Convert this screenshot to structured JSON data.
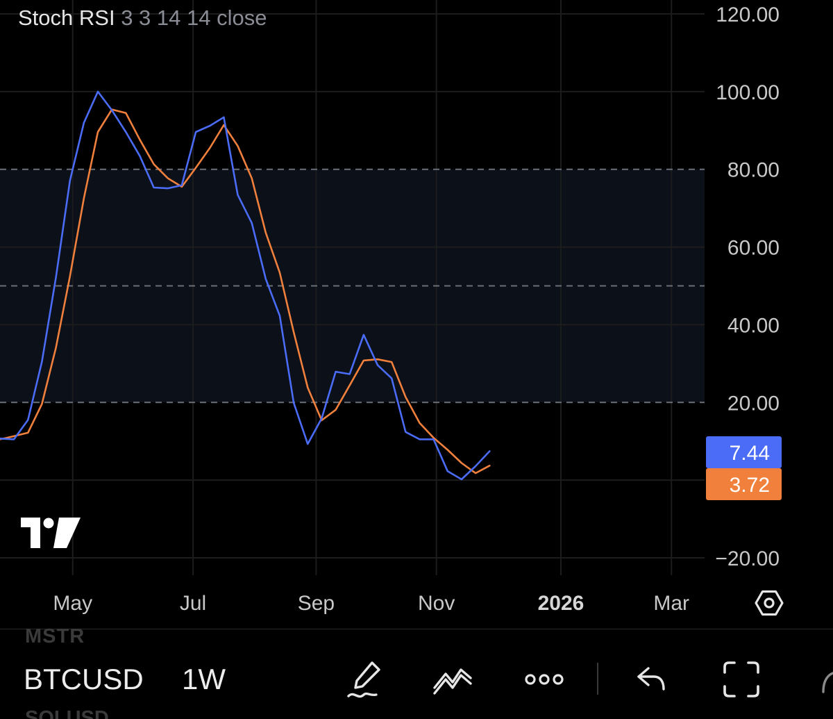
{
  "indicator": {
    "name": "Stoch RSI",
    "params": "3 3 14 14 close"
  },
  "colors": {
    "k_line": "#4a6cf7",
    "d_line": "#f0803c",
    "band_fill": "#0b1019",
    "background": "#000000",
    "grid": "#1c1c1c",
    "dashed": "#6b6f78",
    "axis_text": "#c8c8c8"
  },
  "chart_data": {
    "type": "line",
    "ylim": [
      -20,
      120
    ],
    "y_ticks": [
      "120.00",
      "100.00",
      "80.00",
      "60.00",
      "40.00",
      "20.00",
      "−20.00"
    ],
    "y_tick_values": [
      120,
      100,
      80,
      60,
      40,
      20,
      -20
    ],
    "x_ticks": [
      {
        "label": "May",
        "bold": false
      },
      {
        "label": "Jul",
        "bold": false
      },
      {
        "label": "Sep",
        "bold": false
      },
      {
        "label": "Nov",
        "bold": false
      },
      {
        "label": "2026",
        "bold": true
      },
      {
        "label": "Mar",
        "bold": false
      }
    ],
    "x_tick_index": [
      5.2,
      13.8,
      22.6,
      31.2,
      40.1,
      48
    ],
    "bands": {
      "upper": 80,
      "middle": 50,
      "lower": 20
    },
    "series": [
      {
        "key": "k",
        "color": "#4a6cf7",
        "values": [
          10.7,
          10.5,
          15.5,
          30.5,
          52.2,
          77.1,
          92,
          100,
          95.2,
          89.6,
          83.4,
          75.3,
          75.1,
          75.9,
          89.6,
          91.2,
          93.4,
          73.4,
          66.2,
          51.8,
          42.3,
          19.9,
          9.3,
          15.9,
          27.9,
          27.3,
          37.4,
          29.6,
          26.2,
          12.4,
          10.5,
          10.5,
          2.3,
          0.2,
          3.6,
          7.44
        ]
      },
      {
        "key": "d",
        "color": "#f0803c",
        "values": [
          10.5,
          11.3,
          12.2,
          19.6,
          34.1,
          52.5,
          72.6,
          89.6,
          95.4,
          94.5,
          87.6,
          81.3,
          77.7,
          75.5,
          80.4,
          85.5,
          91.4,
          86,
          77.7,
          63.7,
          53.4,
          38.1,
          23.8,
          15.4,
          18.1,
          24.4,
          30.8,
          31.1,
          30.4,
          21.4,
          14.7,
          10.9,
          7.8,
          4.4,
          1.8,
          3.72
        ]
      }
    ],
    "last_values": [
      {
        "label": "7.44",
        "value": 7.44,
        "color": "#4a6cf7"
      },
      {
        "label": "3.72",
        "value": 3.72,
        "color": "#f0803c"
      }
    ]
  },
  "bottom_bar": {
    "ghost_above": "MSTR",
    "symbol": "BTCUSD",
    "ghost_below": "SOLUSD",
    "interval": "1W"
  }
}
